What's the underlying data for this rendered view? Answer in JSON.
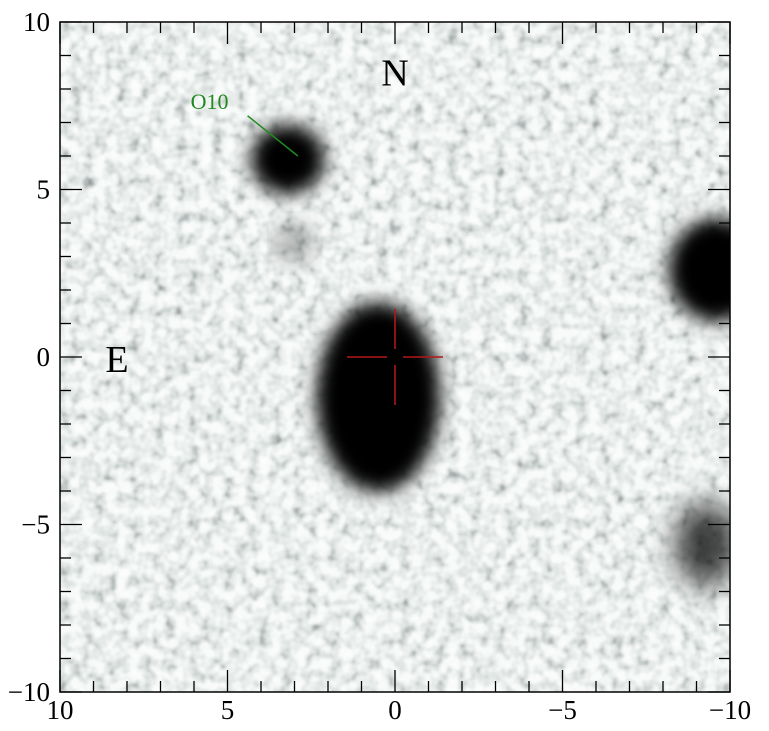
{
  "image": {
    "x_ticks": [
      10,
      5,
      0,
      -5,
      -10
    ],
    "y_ticks": [
      10,
      5,
      0,
      -5,
      -10
    ],
    "x_tick_labels": [
      "10",
      "5",
      "0",
      "−5",
      "−10"
    ],
    "y_tick_labels": [
      "10",
      "5",
      "0",
      "−5",
      "−10"
    ],
    "xlim": [
      10,
      -10
    ],
    "ylim": [
      -10,
      10
    ],
    "minor_tick_step": 1,
    "compass_north": "N",
    "compass_east": "E",
    "source_label": "O10",
    "crosshair_color": "#b01818",
    "source_label_color": "#1f8a1f",
    "sources": [
      {
        "name": "main-galaxy",
        "x": 0.5,
        "y": -1.2
      },
      {
        "name": "o10-blob",
        "x": 3.2,
        "y": 5.9
      },
      {
        "name": "right-edge-source",
        "x": -9.6,
        "y": 2.6
      },
      {
        "name": "lower-right-source",
        "x": -9.3,
        "y": -5.6
      },
      {
        "name": "faint-knot",
        "x": 3.0,
        "y": 3.4
      }
    ],
    "crosshair": {
      "x": 0,
      "y": 0
    }
  }
}
